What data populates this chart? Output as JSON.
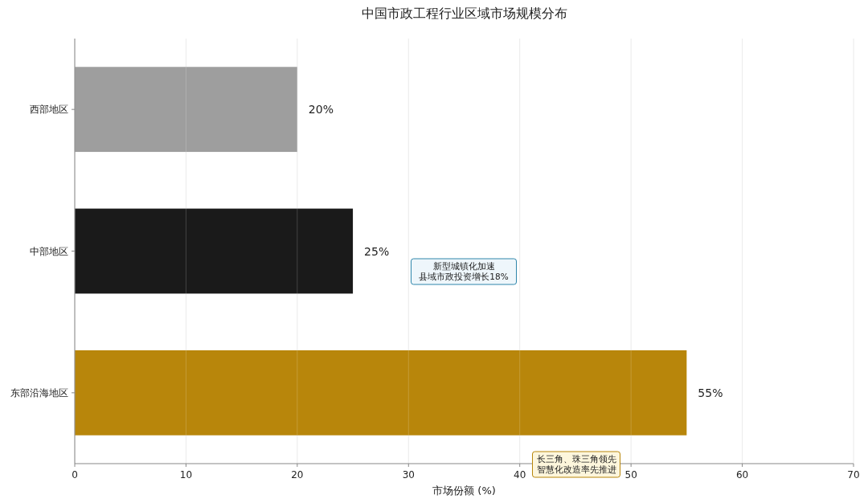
{
  "chart_data": {
    "type": "bar",
    "orientation": "horizontal",
    "title": "中国市政工程行业区域市场规模分布",
    "xlabel": "市场份额 (%)",
    "categories": [
      "西部地区",
      "中部地区",
      "东部沿海地区"
    ],
    "values": [
      20,
      25,
      55
    ],
    "colors": [
      "#9e9e9e",
      "#1a1a1a",
      "#b8860b"
    ],
    "value_labels": [
      "20%",
      "25%",
      "55%"
    ],
    "xlim": [
      0,
      70
    ],
    "xticks": [
      0,
      10,
      20,
      30,
      40,
      50,
      60,
      70
    ],
    "grid": "x",
    "annotations": [
      "新型城镇化加速县域市政投资增长18%",
      "长三角、珠三角领先智慧化改造率先推进"
    ]
  }
}
